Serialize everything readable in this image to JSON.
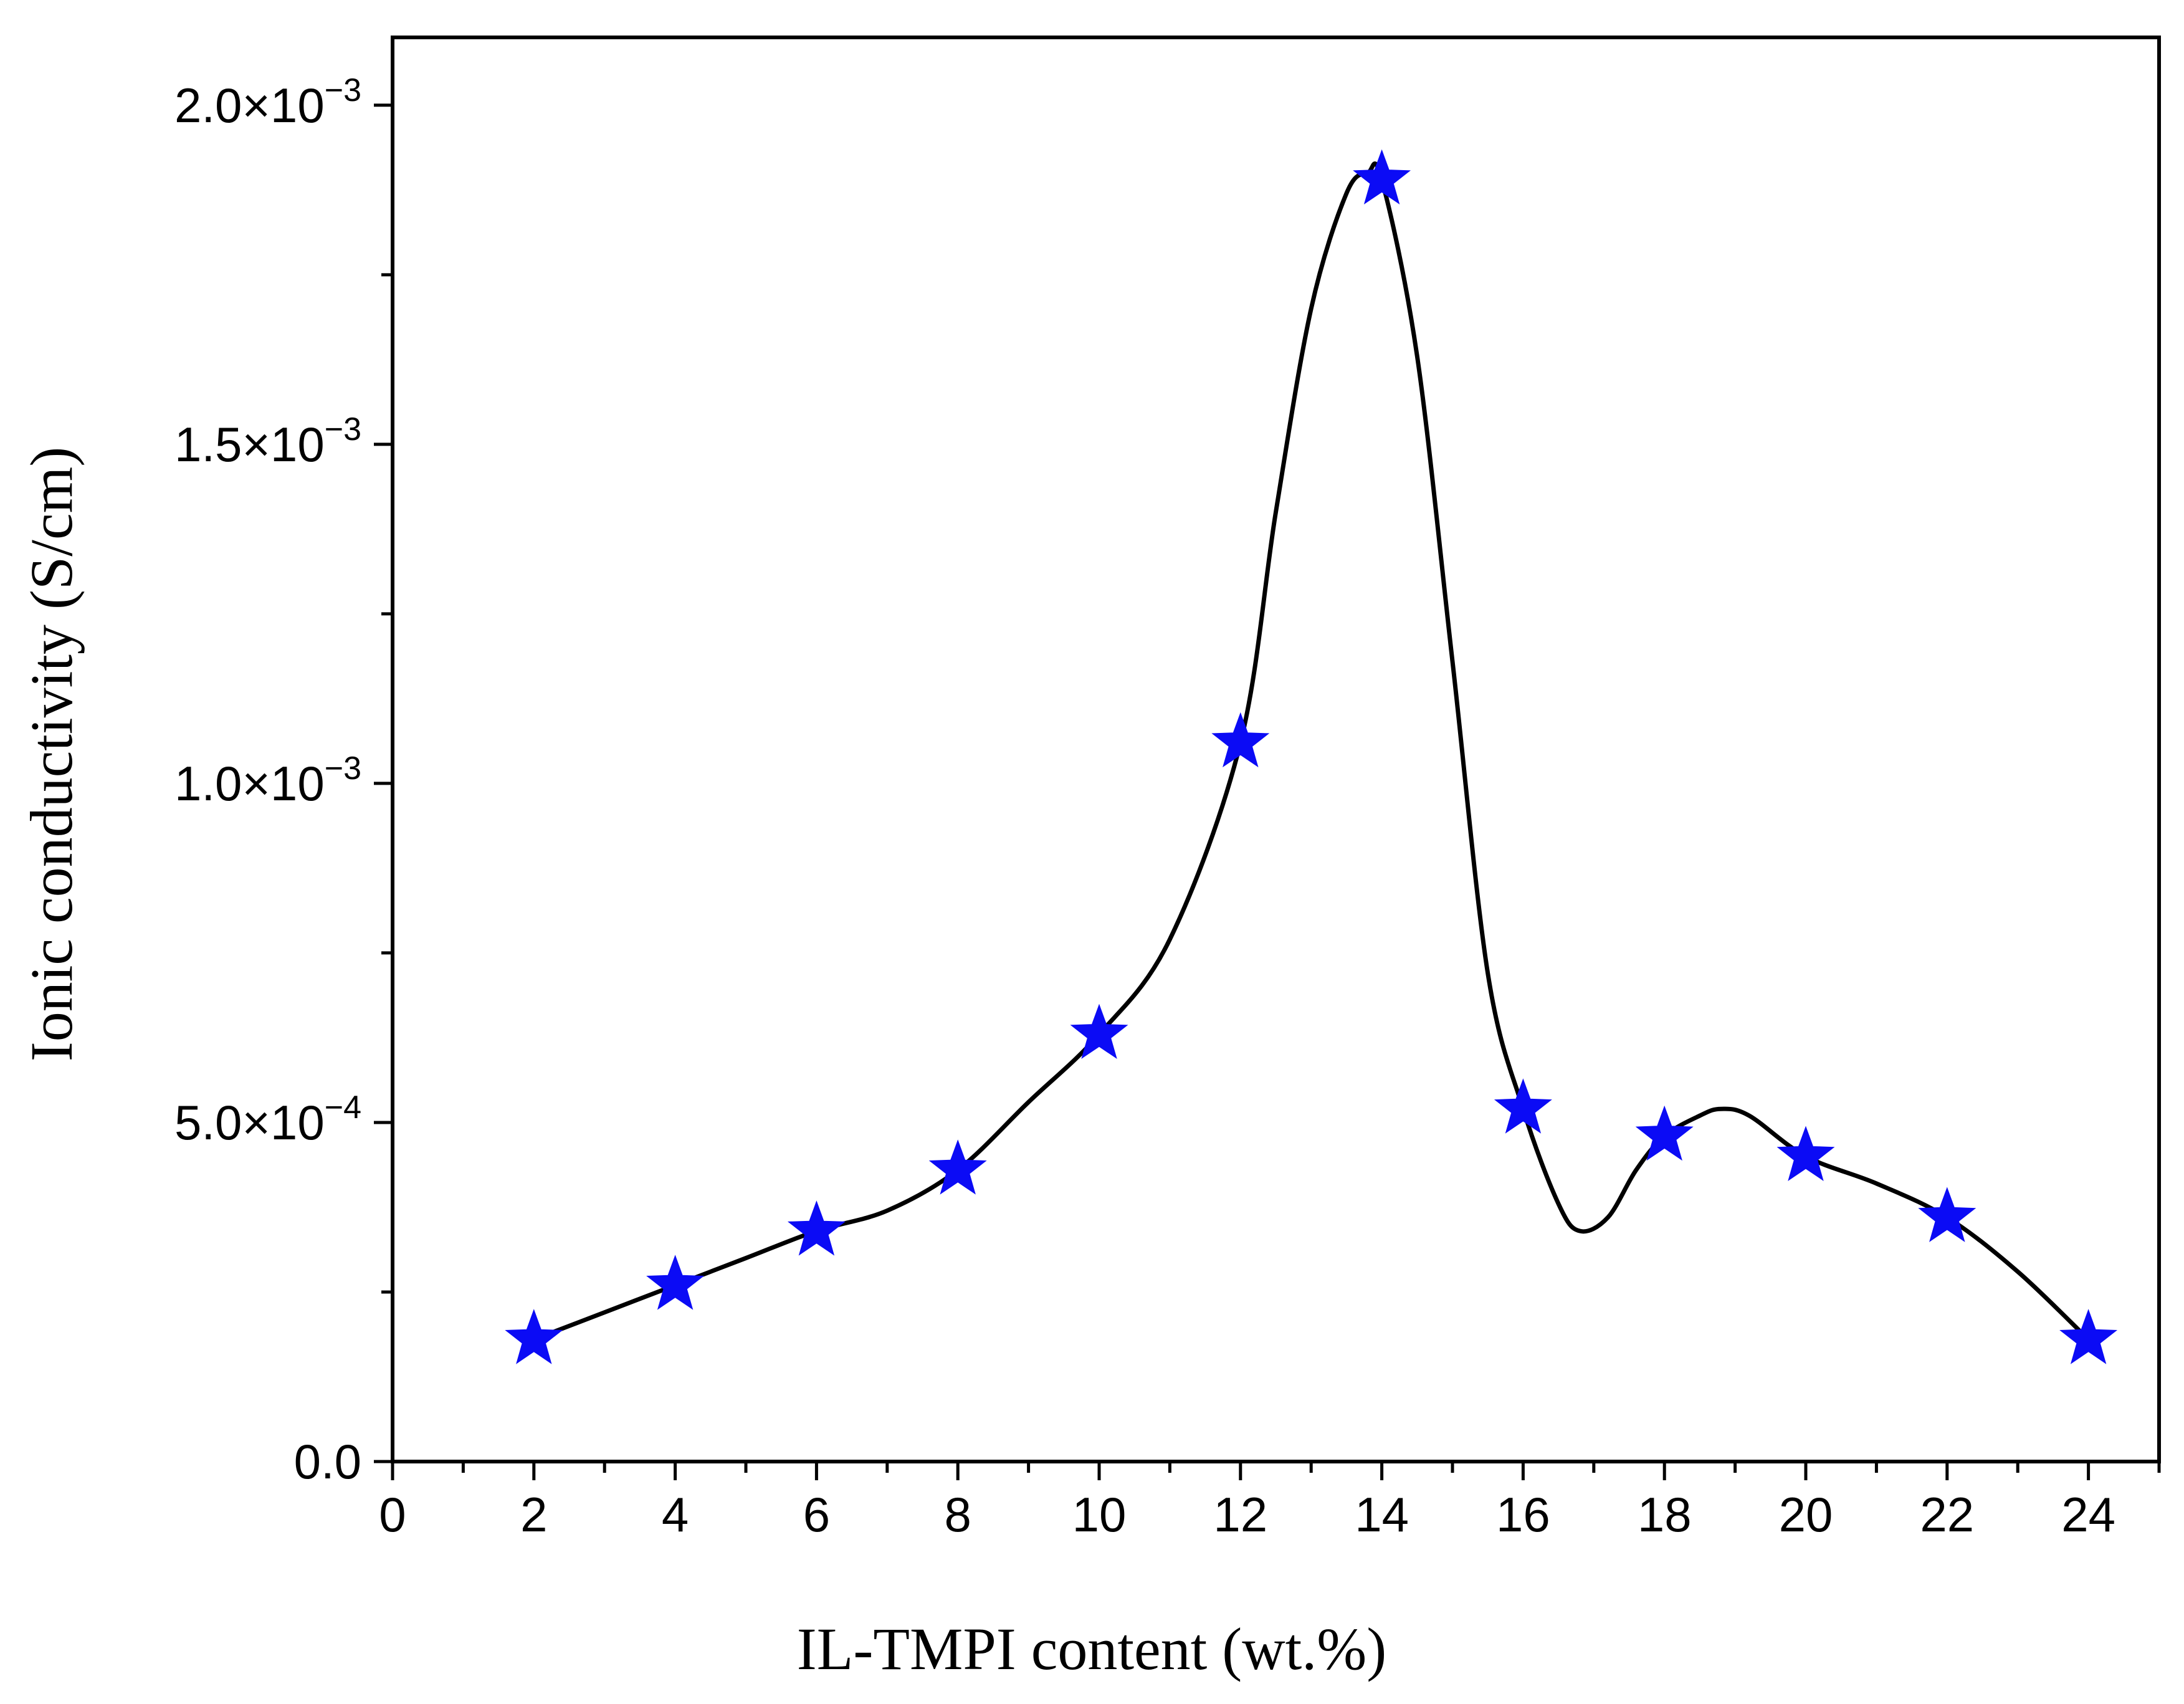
{
  "chart_data": {
    "type": "line",
    "title": "",
    "xlabel": "IL-TMPI content (wt.%)",
    "ylabel": "Ionic conductivity (S/cm)",
    "xlim": [
      0,
      25
    ],
    "ylim": [
      0,
      0.0021
    ],
    "grid": false,
    "legend": null,
    "x_ticks": [
      0,
      2,
      4,
      6,
      8,
      10,
      12,
      14,
      16,
      18,
      20,
      22,
      24
    ],
    "x_tick_labels": [
      "0",
      "2",
      "4",
      "6",
      "8",
      "10",
      "12",
      "14",
      "16",
      "18",
      "20",
      "22",
      "24"
    ],
    "y_ticks": [
      {
        "value": 0,
        "mantissa": "0.0",
        "exponent": ""
      },
      {
        "value": 0.0005,
        "mantissa": "5.0×10",
        "exponent": "−4"
      },
      {
        "value": 0.001,
        "mantissa": "1.0×10",
        "exponent": "−3"
      },
      {
        "value": 0.0015,
        "mantissa": "1.5×10",
        "exponent": "−3"
      },
      {
        "value": 0.002,
        "mantissa": "2.0×10",
        "exponent": "−3"
      }
    ],
    "series": [
      {
        "name": "Ionic conductivity",
        "marker": "star",
        "marker_color": "#0b0bf5",
        "line_color": "#000000",
        "x": [
          2,
          4,
          6,
          8,
          10,
          12,
          14,
          16,
          18,
          20,
          22,
          24
        ],
        "y": [
          0.00018,
          0.00026,
          0.00034,
          0.00043,
          0.00063,
          0.00106,
          0.00189,
          0.00052,
          0.00048,
          0.00045,
          0.00036,
          0.00018
        ]
      }
    ],
    "fitted_curve": {
      "x": [
        2,
        3,
        4,
        5,
        6,
        7,
        8,
        9,
        10,
        11,
        12,
        12.5,
        13,
        13.5,
        13.8,
        14,
        14.5,
        15,
        15.5,
        16,
        16.5,
        16.8,
        17.2,
        17.6,
        18,
        18.5,
        18.8,
        19.2,
        20,
        21,
        22,
        23,
        24
      ],
      "y": [
        0.00018,
        0.00022,
        0.00026,
        0.0003,
        0.00034,
        0.00037,
        0.00043,
        0.00053,
        0.00063,
        0.00077,
        0.00106,
        0.0014,
        0.0017,
        0.00187,
        0.0019,
        0.00189,
        0.00163,
        0.00118,
        0.00072,
        0.00052,
        0.00038,
        0.00034,
        0.00036,
        0.00043,
        0.00048,
        0.00051,
        0.00052,
        0.00051,
        0.00045,
        0.00041,
        0.00036,
        0.00028,
        0.00018
      ]
    }
  }
}
